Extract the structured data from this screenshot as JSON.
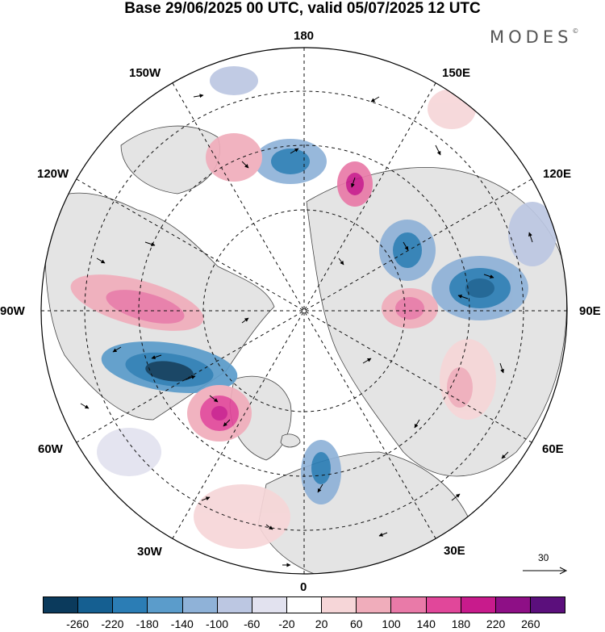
{
  "header": {
    "title": "Base 29/06/2025 00 UTC, valid 05/07/2025 12 UTC",
    "brand": "MODES",
    "brand_mark": "©"
  },
  "map": {
    "projection": "north polar stereographic",
    "longitude_labels": [
      "180",
      "150E",
      "120E",
      "90E",
      "60E",
      "30E",
      "0",
      "30W",
      "60W",
      "90W",
      "120W",
      "150W"
    ],
    "land_color": "#e4e4e4",
    "ocean_color": "#ffffff",
    "graticule": "dashed"
  },
  "reference_vector": {
    "value": "30"
  },
  "colorbar": {
    "colors": [
      "#0b3a5c",
      "#155f91",
      "#2b7db5",
      "#5b9ccb",
      "#8fb2d8",
      "#bcc7e2",
      "#e2e2ef",
      "#ffffff",
      "#f6d6d8",
      "#f0adbb",
      "#e97aa8",
      "#e1479a",
      "#c81b8c",
      "#8e0f86",
      "#5b0f7c"
    ],
    "labels": [
      "-260",
      "-220",
      "-180",
      "-140",
      "-100",
      "-60",
      "-20",
      "20",
      "60",
      "100",
      "140",
      "180",
      "220",
      "260"
    ]
  }
}
